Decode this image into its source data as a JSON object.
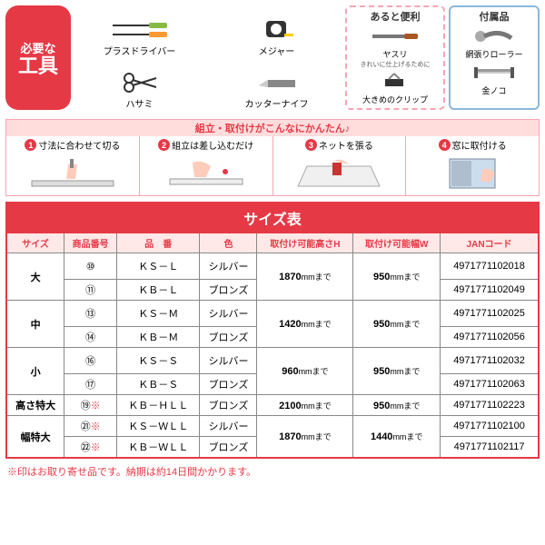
{
  "tools": {
    "badge": {
      "line1": "必要な",
      "line2": "工具"
    },
    "items": [
      {
        "name": "プラスドライバー",
        "icon": "screwdriver"
      },
      {
        "name": "メジャー",
        "icon": "tape"
      },
      {
        "name": "ハサミ",
        "icon": "scissors"
      },
      {
        "name": "カッターナイフ",
        "icon": "cutter"
      }
    ],
    "pink": {
      "title": "あると便利",
      "items": [
        {
          "name": "ヤスリ",
          "sub": "きれいに仕上げるために",
          "icon": "file"
        },
        {
          "name": "大きめのクリップ",
          "sub": "",
          "icon": "clip"
        }
      ]
    },
    "blue": {
      "title": "付属品",
      "items": [
        {
          "name": "網張りローラー",
          "icon": "roller"
        },
        {
          "name": "金ノコ",
          "icon": "saw"
        }
      ]
    }
  },
  "steps": {
    "header": "組立・取付けがこんなにかんたん♪",
    "list": [
      {
        "num": "1",
        "label": "寸法に合わせて切る"
      },
      {
        "num": "2",
        "label": "組立は差し込むだけ"
      },
      {
        "num": "3",
        "label": "ネットを張る"
      },
      {
        "num": "4",
        "label": "窓に取付ける"
      }
    ]
  },
  "table": {
    "title": "サイズ表",
    "headers": [
      "サイズ",
      "商品番号",
      "品　番",
      "色",
      "取付け可能高さH",
      "取付け可能幅W",
      "JANコード"
    ],
    "rows": [
      {
        "size": "大",
        "span": 2,
        "num": "⑩",
        "code": "ＫＳ－Ｌ",
        "color": "シルバー",
        "h": "1870mmまで",
        "w": "950mmまで",
        "jan": "4971771102018"
      },
      {
        "num": "⑪",
        "code": "ＫＢ－Ｌ",
        "color": "ブロンズ",
        "jan": "4971771102049"
      },
      {
        "size": "中",
        "span": 2,
        "num": "⑬",
        "code": "ＫＳ－Ｍ",
        "color": "シルバー",
        "h": "1420mmまで",
        "w": "950mmまで",
        "jan": "4971771102025"
      },
      {
        "num": "⑭",
        "code": "ＫＢ－Ｍ",
        "color": "ブロンズ",
        "jan": "4971771102056"
      },
      {
        "size": "小",
        "span": 2,
        "num": "⑯",
        "code": "ＫＳ－Ｓ",
        "color": "シルバー",
        "h": "960mmまで",
        "w": "950mmまで",
        "jan": "4971771102032"
      },
      {
        "num": "⑰",
        "code": "ＫＢ－Ｓ",
        "color": "ブロンズ",
        "jan": "4971771102063"
      },
      {
        "size": "高さ特大",
        "span": 1,
        "num": "⑲",
        "star": true,
        "code": "ＫＢ－ＨＬＬ",
        "color": "ブロンズ",
        "h": "2100mmまで",
        "w": "950mmまで",
        "jan": "4971771102223"
      },
      {
        "size": "幅特大",
        "span": 2,
        "num": "㉑",
        "star": true,
        "code": "ＫＳ－ＷＬＬ",
        "color": "シルバー",
        "h": "1870mmまで",
        "w": "1440mmまで",
        "jan": "4971771102100"
      },
      {
        "num": "㉒",
        "star": true,
        "code": "ＫＢ－ＷＬＬ",
        "color": "ブロンズ",
        "jan": "4971771102117"
      }
    ]
  },
  "note": "※印はお取り寄せ品です。納期は約14日間かかります。",
  "colors": {
    "red": "#e63946",
    "pink": "#f4a6b4",
    "blue": "#8bb8d8",
    "header_bg": "#ffe8e8"
  }
}
